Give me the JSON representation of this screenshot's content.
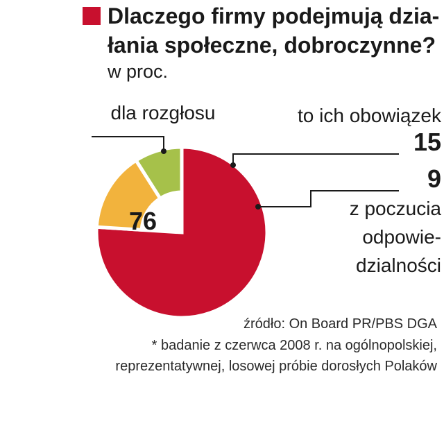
{
  "title": "Dlaczego firmy podejmują dzia-\nłania społeczne, dobroczynne?",
  "unit": "w proc.",
  "colors": {
    "dla_rozglosu": "#c8102e",
    "obowiazek": "#f2b33d",
    "odpowiedzialnosc": "#a6c14a",
    "square": "#c8102e"
  },
  "chart_data": {
    "type": "pie",
    "slices": [
      {
        "label": "dla rozgłosu",
        "value": 76,
        "value_text": "76",
        "color": "#c8102e"
      },
      {
        "label": "to ich obowiązek",
        "value": 15,
        "value_text": "15",
        "color": "#f2b33d"
      },
      {
        "label": "z poczucia odpowie-dzialności",
        "label_lines": [
          "z poczucia",
          "odpowie-",
          "dzialności"
        ],
        "value": 9,
        "value_text": "9",
        "color": "#a6c14a"
      }
    ]
  },
  "footer": {
    "source": "źródło: On Board PR/PBS DGA",
    "note1": "* badanie z czerwca 2008 r. na ogólnopolskiej,",
    "note2": "reprezentatywnej, losowej próbie dorosłych Polaków"
  }
}
